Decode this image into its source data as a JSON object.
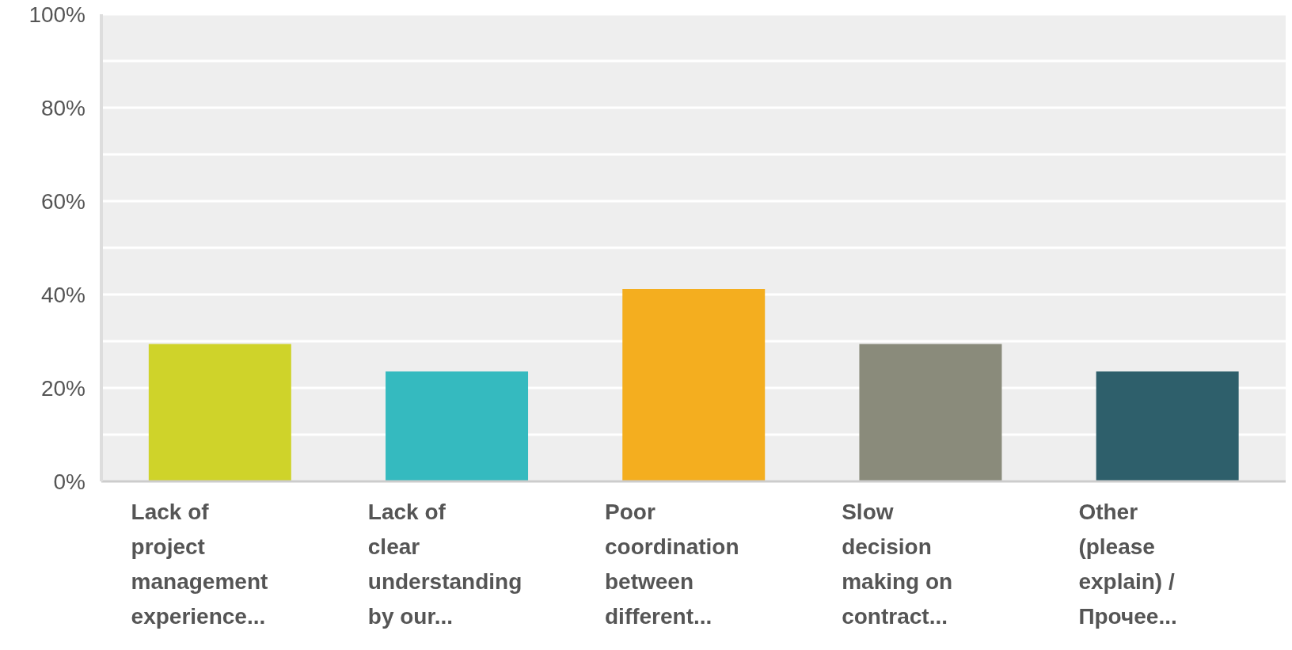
{
  "chart_data": {
    "type": "bar",
    "categories": [
      "Lack of project management experience...",
      "Lack of clear understanding by our...",
      "Poor coordination between different...",
      "Slow decision making on contract...",
      "Other (please explain) / Прочее..."
    ],
    "values": [
      29.4,
      23.5,
      41.2,
      29.4,
      23.5
    ],
    "colors": [
      "#cfd32a",
      "#35babf",
      "#f4ae1f",
      "#8a8b7b",
      "#2e5f6b"
    ],
    "ylim": [
      0,
      100
    ],
    "yticks": [
      {
        "value": 0,
        "label": "0%"
      },
      {
        "value": 10,
        "label": null
      },
      {
        "value": 20,
        "label": "20%"
      },
      {
        "value": 30,
        "label": null
      },
      {
        "value": 40,
        "label": "40%"
      },
      {
        "value": 50,
        "label": null
      },
      {
        "value": 60,
        "label": "60%"
      },
      {
        "value": 70,
        "label": null
      },
      {
        "value": 80,
        "label": "80%"
      },
      {
        "value": 90,
        "label": null
      },
      {
        "value": 100,
        "label": "100%"
      }
    ],
    "grid": "y"
  }
}
